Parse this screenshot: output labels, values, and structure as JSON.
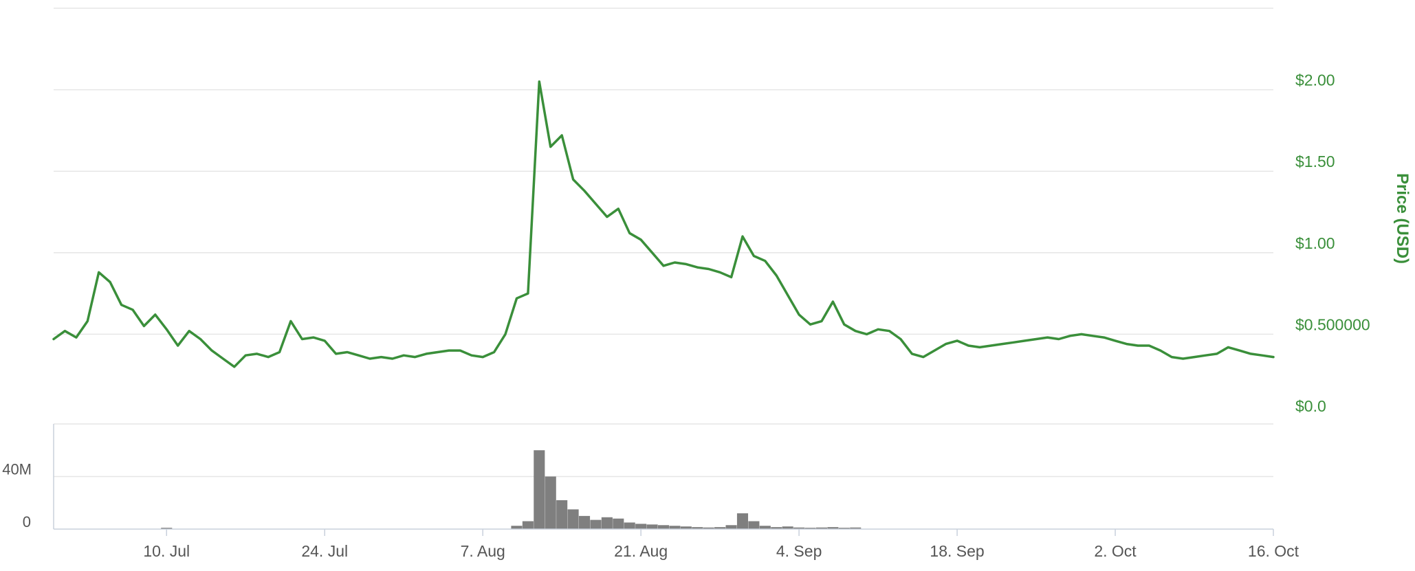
{
  "chart_data": {
    "type": "line",
    "price_axis": {
      "title": "Price (USD)",
      "ticks": [
        {
          "value": 0,
          "label": "$0.0"
        },
        {
          "value": 0.5,
          "label": "$0.500000"
        },
        {
          "value": 1,
          "label": "$1.00"
        },
        {
          "value": 1.5,
          "label": "$1.50"
        },
        {
          "value": 2,
          "label": "$2.00"
        }
      ],
      "range": [
        0,
        2.5
      ]
    },
    "volume_axis": {
      "ticks": [
        {
          "value": 0,
          "label": "0"
        },
        {
          "value": 40000000,
          "label": "40M"
        }
      ],
      "range": [
        0,
        80000000
      ]
    },
    "x_axis": {
      "range": [
        "2017-06-30",
        "2017-10-16"
      ],
      "ticks": [
        {
          "date": "2017-07-10",
          "label": "10. Jul"
        },
        {
          "date": "2017-07-24",
          "label": "24. Jul"
        },
        {
          "date": "2017-08-07",
          "label": "7. Aug"
        },
        {
          "date": "2017-08-21",
          "label": "21. Aug"
        },
        {
          "date": "2017-09-04",
          "label": "4. Sep"
        },
        {
          "date": "2017-09-18",
          "label": "18. Sep"
        },
        {
          "date": "2017-10-02",
          "label": "2. Oct"
        },
        {
          "date": "2017-10-16",
          "label": "16. Oct"
        }
      ]
    },
    "series": [
      {
        "type": "line",
        "color": "#3a8f3a",
        "data": [
          [
            "2017-06-30",
            0.47
          ],
          [
            "2017-07-01",
            0.52
          ],
          [
            "2017-07-02",
            0.48
          ],
          [
            "2017-07-03",
            0.58
          ],
          [
            "2017-07-04",
            0.88
          ],
          [
            "2017-07-05",
            0.82
          ],
          [
            "2017-07-06",
            0.68
          ],
          [
            "2017-07-07",
            0.65
          ],
          [
            "2017-07-08",
            0.55
          ],
          [
            "2017-07-09",
            0.62
          ],
          [
            "2017-07-10",
            0.53
          ],
          [
            "2017-07-11",
            0.43
          ],
          [
            "2017-07-12",
            0.52
          ],
          [
            "2017-07-13",
            0.47
          ],
          [
            "2017-07-14",
            0.4
          ],
          [
            "2017-07-15",
            0.35
          ],
          [
            "2017-07-16",
            0.3
          ],
          [
            "2017-07-17",
            0.37
          ],
          [
            "2017-07-18",
            0.38
          ],
          [
            "2017-07-19",
            0.36
          ],
          [
            "2017-07-20",
            0.39
          ],
          [
            "2017-07-21",
            0.58
          ],
          [
            "2017-07-22",
            0.47
          ],
          [
            "2017-07-23",
            0.48
          ],
          [
            "2017-07-24",
            0.46
          ],
          [
            "2017-07-25",
            0.38
          ],
          [
            "2017-07-26",
            0.39
          ],
          [
            "2017-07-27",
            0.37
          ],
          [
            "2017-07-28",
            0.35
          ],
          [
            "2017-07-29",
            0.36
          ],
          [
            "2017-07-30",
            0.35
          ],
          [
            "2017-07-31",
            0.37
          ],
          [
            "2017-08-01",
            0.36
          ],
          [
            "2017-08-02",
            0.38
          ],
          [
            "2017-08-03",
            0.39
          ],
          [
            "2017-08-04",
            0.4
          ],
          [
            "2017-08-05",
            0.4
          ],
          [
            "2017-08-06",
            0.37
          ],
          [
            "2017-08-07",
            0.36
          ],
          [
            "2017-08-08",
            0.39
          ],
          [
            "2017-08-09",
            0.5
          ],
          [
            "2017-08-10",
            0.72
          ],
          [
            "2017-08-11",
            0.75
          ],
          [
            "2017-08-12",
            2.05
          ],
          [
            "2017-08-13",
            1.65
          ],
          [
            "2017-08-14",
            1.72
          ],
          [
            "2017-08-15",
            1.45
          ],
          [
            "2017-08-16",
            1.38
          ],
          [
            "2017-08-17",
            1.3
          ],
          [
            "2017-08-18",
            1.22
          ],
          [
            "2017-08-19",
            1.27
          ],
          [
            "2017-08-20",
            1.12
          ],
          [
            "2017-08-21",
            1.08
          ],
          [
            "2017-08-22",
            1.0
          ],
          [
            "2017-08-23",
            0.92
          ],
          [
            "2017-08-24",
            0.94
          ],
          [
            "2017-08-25",
            0.93
          ],
          [
            "2017-08-26",
            0.91
          ],
          [
            "2017-08-27",
            0.9
          ],
          [
            "2017-08-28",
            0.88
          ],
          [
            "2017-08-29",
            0.85
          ],
          [
            "2017-08-30",
            1.1
          ],
          [
            "2017-08-31",
            0.98
          ],
          [
            "2017-09-01",
            0.95
          ],
          [
            "2017-09-02",
            0.86
          ],
          [
            "2017-09-03",
            0.74
          ],
          [
            "2017-09-04",
            0.62
          ],
          [
            "2017-09-05",
            0.56
          ],
          [
            "2017-09-06",
            0.58
          ],
          [
            "2017-09-07",
            0.7
          ],
          [
            "2017-09-08",
            0.56
          ],
          [
            "2017-09-09",
            0.52
          ],
          [
            "2017-09-10",
            0.5
          ],
          [
            "2017-09-11",
            0.53
          ],
          [
            "2017-09-12",
            0.52
          ],
          [
            "2017-09-13",
            0.47
          ],
          [
            "2017-09-14",
            0.38
          ],
          [
            "2017-09-15",
            0.36
          ],
          [
            "2017-09-16",
            0.4
          ],
          [
            "2017-09-17",
            0.44
          ],
          [
            "2017-09-18",
            0.46
          ],
          [
            "2017-09-19",
            0.43
          ],
          [
            "2017-09-20",
            0.42
          ],
          [
            "2017-09-21",
            0.43
          ],
          [
            "2017-09-22",
            0.44
          ],
          [
            "2017-09-23",
            0.45
          ],
          [
            "2017-09-24",
            0.46
          ],
          [
            "2017-09-25",
            0.47
          ],
          [
            "2017-09-26",
            0.48
          ],
          [
            "2017-09-27",
            0.47
          ],
          [
            "2017-09-28",
            0.49
          ],
          [
            "2017-09-29",
            0.5
          ],
          [
            "2017-09-30",
            0.49
          ],
          [
            "2017-10-01",
            0.48
          ],
          [
            "2017-10-02",
            0.46
          ],
          [
            "2017-10-03",
            0.44
          ],
          [
            "2017-10-04",
            0.43
          ],
          [
            "2017-10-05",
            0.43
          ],
          [
            "2017-10-06",
            0.4
          ],
          [
            "2017-10-07",
            0.36
          ],
          [
            "2017-10-08",
            0.35
          ],
          [
            "2017-10-09",
            0.36
          ],
          [
            "2017-10-10",
            0.37
          ],
          [
            "2017-10-11",
            0.38
          ],
          [
            "2017-10-12",
            0.42
          ],
          [
            "2017-10-13",
            0.4
          ],
          [
            "2017-10-14",
            0.38
          ],
          [
            "2017-10-15",
            0.37
          ],
          [
            "2017-10-16",
            0.36
          ]
        ]
      },
      {
        "type": "bar",
        "color": "#7f7f7f",
        "data": [
          [
            "2017-07-10",
            1000000
          ],
          [
            "2017-08-10",
            2500000
          ],
          [
            "2017-08-11",
            6000000
          ],
          [
            "2017-08-12",
            60000000
          ],
          [
            "2017-08-13",
            40000000
          ],
          [
            "2017-08-14",
            22000000
          ],
          [
            "2017-08-15",
            15000000
          ],
          [
            "2017-08-16",
            10000000
          ],
          [
            "2017-08-17",
            7000000
          ],
          [
            "2017-08-18",
            9000000
          ],
          [
            "2017-08-19",
            8000000
          ],
          [
            "2017-08-20",
            5000000
          ],
          [
            "2017-08-21",
            4000000
          ],
          [
            "2017-08-22",
            3500000
          ],
          [
            "2017-08-23",
            3000000
          ],
          [
            "2017-08-24",
            2500000
          ],
          [
            "2017-08-25",
            2000000
          ],
          [
            "2017-08-26",
            1500000
          ],
          [
            "2017-08-27",
            1200000
          ],
          [
            "2017-08-28",
            1500000
          ],
          [
            "2017-08-29",
            3000000
          ],
          [
            "2017-08-30",
            12000000
          ],
          [
            "2017-08-31",
            6000000
          ],
          [
            "2017-09-01",
            2500000
          ],
          [
            "2017-09-02",
            1500000
          ],
          [
            "2017-09-03",
            2000000
          ],
          [
            "2017-09-04",
            1200000
          ],
          [
            "2017-09-05",
            1000000
          ],
          [
            "2017-09-06",
            1200000
          ],
          [
            "2017-09-07",
            1500000
          ],
          [
            "2017-09-08",
            1000000
          ],
          [
            "2017-09-09",
            1200000
          ]
        ]
      }
    ]
  }
}
